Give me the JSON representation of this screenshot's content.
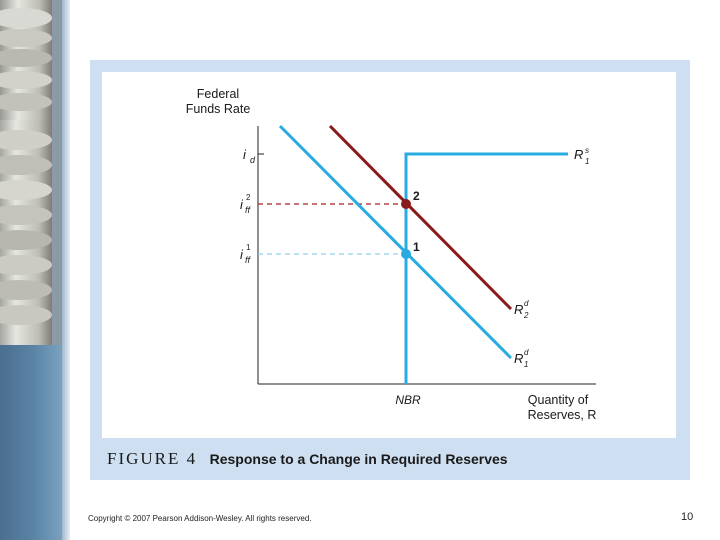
{
  "slide": {
    "copyright": "Copyright © 2007 Pearson Addison-Wesley. All rights reserved.",
    "page_number": "10"
  },
  "figure": {
    "label": "FIGURE 4",
    "title": "Response to a Change in Required Reserves"
  },
  "diagram": {
    "y_axis_label_line1": "Federal",
    "y_axis_label_line2": "Funds Rate",
    "x_axis_label_line1": "Quantity of",
    "x_axis_label_line2": "Reserves, R",
    "x_tick_nbr": "NBR",
    "y_tick_id": {
      "base": "i",
      "sub": "d"
    },
    "y_tick_iff2": {
      "base": "i",
      "sub": "ff",
      "sup": "2"
    },
    "y_tick_iff1": {
      "base": "i",
      "sub": "ff",
      "sup": "1"
    },
    "curve_supply": {
      "base": "R",
      "sub": "1",
      "sup": "s"
    },
    "curve_demand2": {
      "base": "R",
      "sub": "2",
      "sup": "d"
    },
    "curve_demand1": {
      "base": "R",
      "sub": "1",
      "sup": "d"
    },
    "point_2": "2",
    "point_1": "1",
    "colors": {
      "supply": "#29abe2",
      "demand1": "#29abe2",
      "demand2": "#8b1a1a",
      "dashed2": "#a32020",
      "dashed1": "#8fd0ee",
      "axis": "#222222"
    }
  }
}
